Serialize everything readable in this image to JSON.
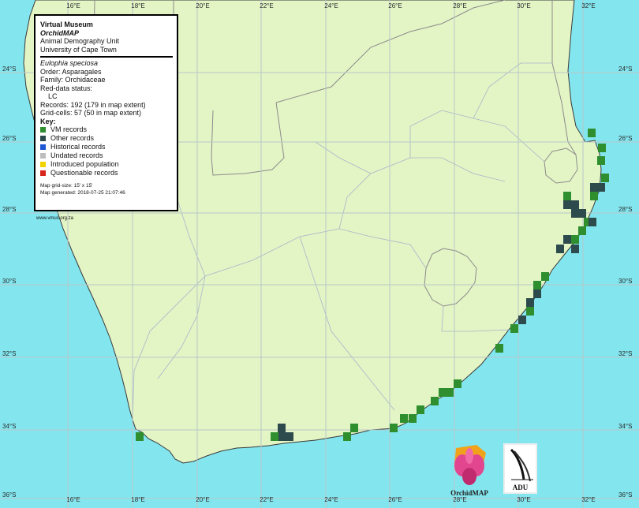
{
  "map": {
    "lon_labels": [
      "16°E",
      "18°E",
      "20°E",
      "22°E",
      "24°E",
      "26°E",
      "28°E",
      "30°E",
      "32°E"
    ],
    "lat_labels": [
      "24°S",
      "26°S",
      "28°S",
      "30°S",
      "32°S",
      "34°S",
      "36°S"
    ],
    "colors": {
      "ocean": "#83e6ef",
      "land": "#e3f4c5",
      "vm": "#2f8f2f",
      "other": "#2d4a4c"
    }
  },
  "legend": {
    "org": "Virtual Museum",
    "app": "OrchidMAP",
    "unit": "Animal Demography Unit",
    "uni": "University of Cape Town",
    "species": "Eulophia speciosa",
    "order": "Order: Asparagales",
    "family": "Family: Orchidaceae",
    "redlist_label": "Red-data status:",
    "redlist_value": "LC",
    "records": "Records: 192 (179 in map extent)",
    "gridcells": "Grid-cells: 57 (50 in map extent)",
    "key_title": "Key:",
    "key": [
      {
        "label": "VM records",
        "color": "#2f8f2f"
      },
      {
        "label": "Other records",
        "color": "#2d4a4c"
      },
      {
        "label": "Historical records",
        "color": "#1f57d6"
      },
      {
        "label": "Undated records",
        "color": "#bdbdbd"
      },
      {
        "label": "Introduced population",
        "color": "#f2d200"
      },
      {
        "label": "Questionable records",
        "color": "#d9261c"
      }
    ],
    "grid_size": "Map grid-size: 15' x 15'",
    "generated": "Map generated: 2018-07-25 21:07:46"
  },
  "url": "www.vmus.org.za",
  "logos": {
    "orchid": "OrchidMAP",
    "adu": "ADU"
  }
}
